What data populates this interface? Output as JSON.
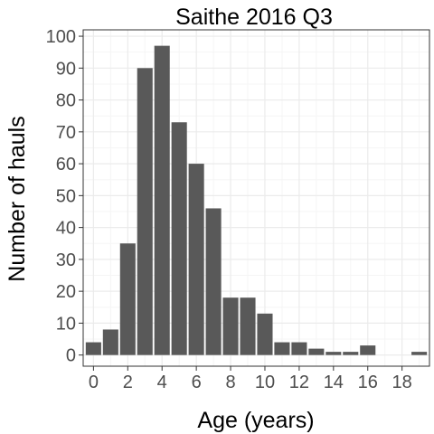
{
  "chart_data": {
    "type": "bar",
    "title": "Saithe 2016 Q3",
    "xlabel": "Age (years)",
    "ylabel": "Number of hauls",
    "x": [
      0,
      1,
      2,
      3,
      4,
      5,
      6,
      7,
      8,
      9,
      10,
      11,
      12,
      13,
      14,
      15,
      16,
      19
    ],
    "values": [
      4,
      8,
      35,
      90,
      97,
      73,
      60,
      46,
      18,
      18,
      13,
      4,
      4,
      2,
      1,
      1,
      3,
      1
    ],
    "xlim": [
      -0.6,
      19.6
    ],
    "ylim": [
      -3.5,
      102
    ],
    "x_ticks": [
      0,
      2,
      4,
      6,
      8,
      10,
      12,
      14,
      16,
      18
    ],
    "y_ticks": [
      0,
      10,
      20,
      30,
      40,
      50,
      60,
      70,
      80,
      90,
      100
    ],
    "grid": true,
    "legend": "none",
    "colors": {
      "bar": "#595959",
      "grid_major": "#ebebeb",
      "grid_minor": "#f5f5f5",
      "panel_border": "#333333",
      "tick_text": "#4d4d4d"
    }
  }
}
